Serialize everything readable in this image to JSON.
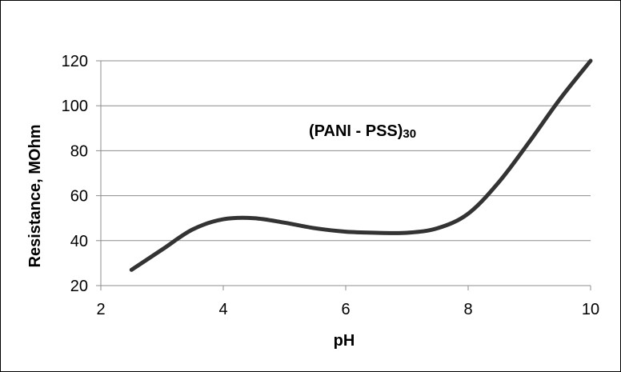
{
  "chart_data": {
    "type": "line",
    "title": "",
    "xlabel": "pH",
    "ylabel": "Resistance, MOhm",
    "xlim": [
      2,
      10
    ],
    "ylim": [
      20,
      120
    ],
    "x_ticks": [
      "2",
      "4",
      "6",
      "8",
      "10"
    ],
    "y_ticks": [
      "20",
      "40",
      "60",
      "80",
      "100",
      "120"
    ],
    "grid": "horizontal",
    "annotation": {
      "main": "(PANI - PSS)",
      "subscript": "30"
    },
    "series": [
      {
        "color": "#333333",
        "x": [
          2.5,
          3.0,
          3.5,
          4.0,
          4.5,
          5.0,
          5.5,
          6.0,
          6.5,
          7.0,
          7.5,
          8.0,
          8.5,
          9.0,
          9.5,
          10.0
        ],
        "y": [
          27,
          36,
          45,
          49.5,
          50,
          48,
          45.5,
          44,
          43.5,
          43.5,
          45.5,
          52,
          66,
          84,
          103,
          120
        ]
      }
    ]
  }
}
